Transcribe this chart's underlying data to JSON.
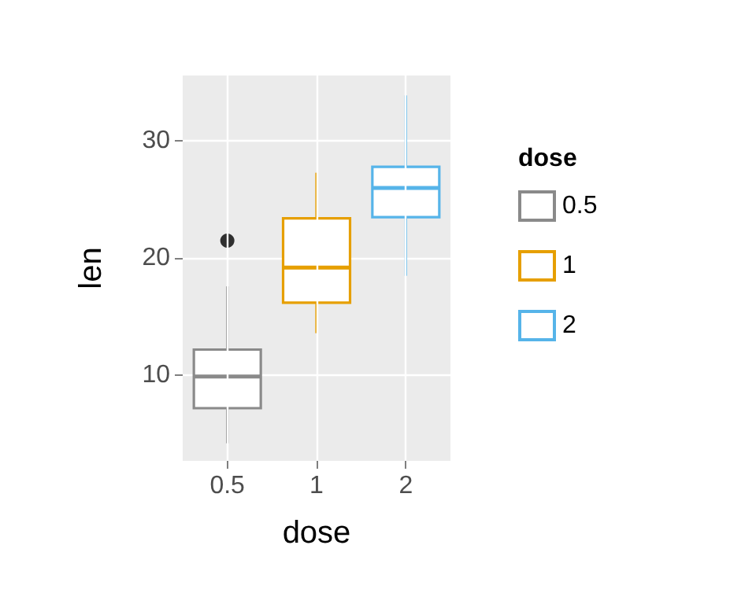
{
  "chart_data": {
    "type": "box",
    "xlabel": "dose",
    "ylabel": "len",
    "legend_title": "dose",
    "categories": [
      "0.5",
      "1",
      "2"
    ],
    "series": [
      {
        "name": "0.5",
        "color": "#8a8a8a",
        "boxes": [
          {
            "low": 4.2,
            "q1": 7.2,
            "median": 9.9,
            "q3": 12.2,
            "high": 17.6,
            "outliers": [
              21.5
            ]
          },
          null,
          null
        ]
      },
      {
        "name": "1",
        "color": "#e69f00",
        "boxes": [
          null,
          {
            "low": 13.6,
            "q1": 16.2,
            "median": 19.2,
            "q3": 23.4,
            "high": 27.3
          },
          null
        ]
      },
      {
        "name": "2",
        "color": "#56b4e9",
        "boxes": [
          null,
          null,
          {
            "low": 18.5,
            "q1": 23.5,
            "median": 26.0,
            "q3": 27.8,
            "high": 33.9
          }
        ]
      }
    ],
    "ylim": [
      2.7,
      35.6
    ],
    "yticks": [
      10,
      20,
      30
    ],
    "grid": true,
    "legend": "right"
  }
}
